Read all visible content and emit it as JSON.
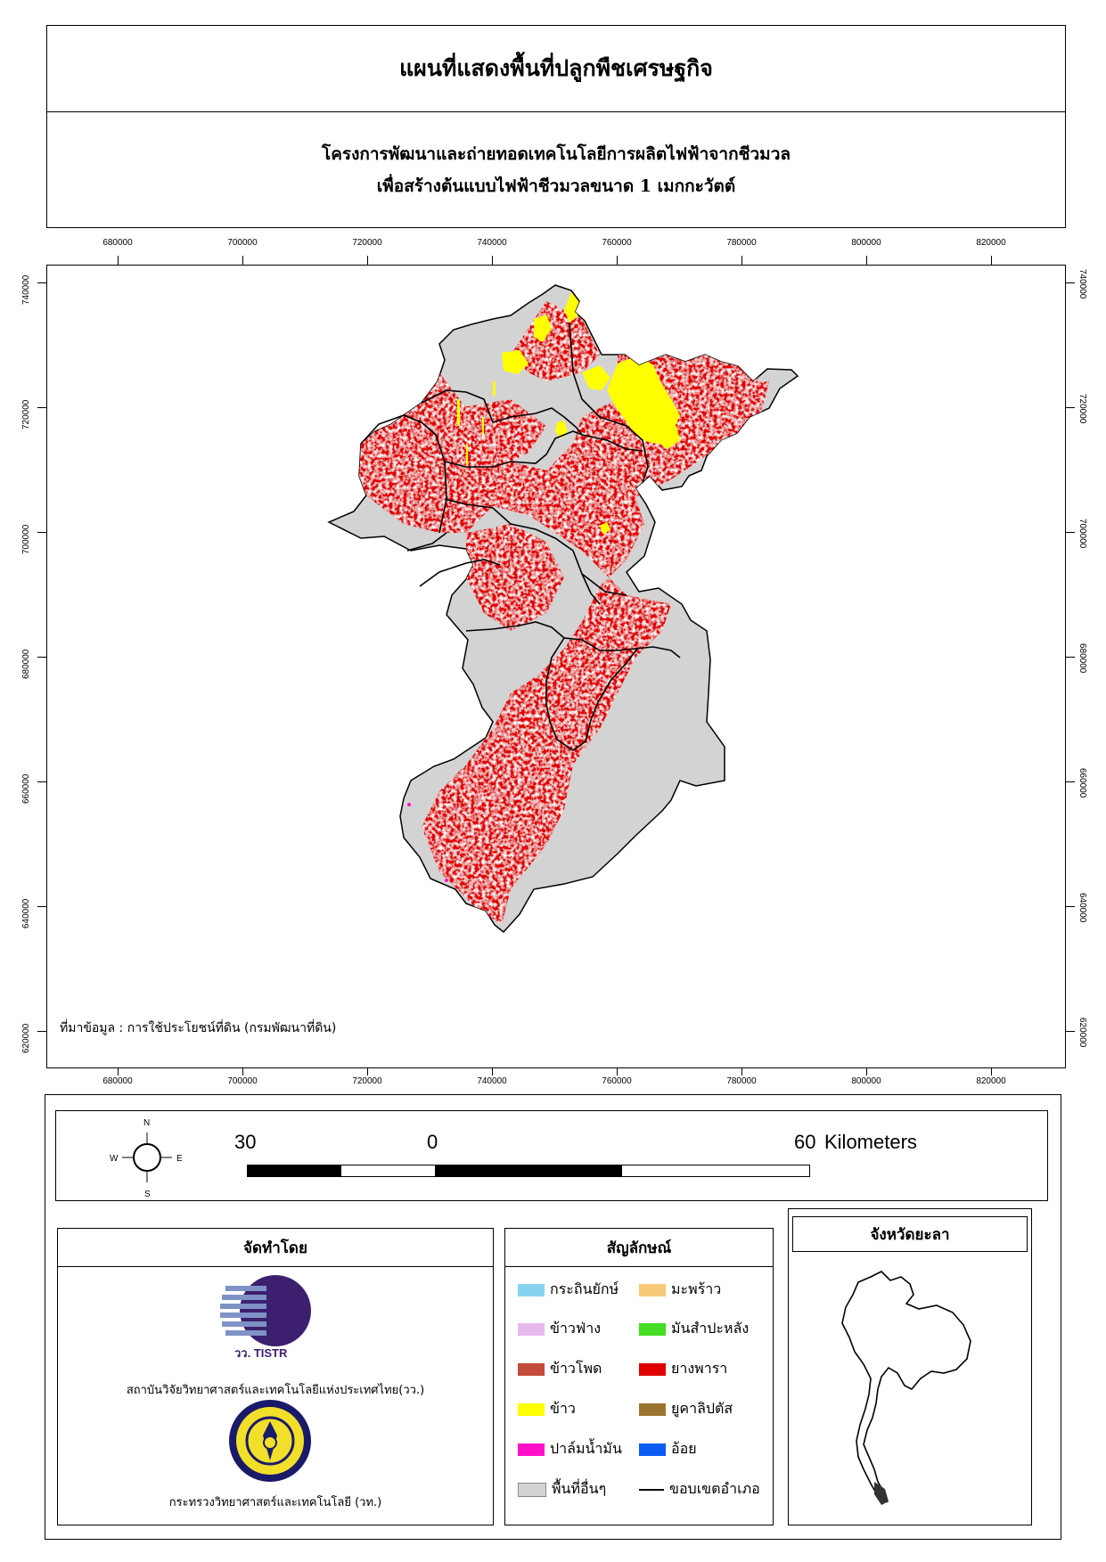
{
  "title": "แผนที่แสดงพื้นที่ปลูกพืชเศรษฐกิจ",
  "subtitle": [
    "โครงการพัฒนาและถ่ายทอดเทคโนโลยีการผลิตไฟฟ้าจากชีวมวล",
    "เพื่อสร้างต้นแบบไฟฟ้าชีวมวลขนาด 1 เมกกะวัตต์"
  ],
  "x_ticks": [
    "680000",
    "700000",
    "720000",
    "740000",
    "760000",
    "780000",
    "800000",
    "820000"
  ],
  "y_ticks": [
    "740000",
    "720000",
    "700000",
    "680000",
    "660000",
    "640000",
    "620000"
  ],
  "source": "ที่มาข้อมูล : การใช้ประโยชน์ที่ดิน (กรมพัฒนาที่ดิน)",
  "north_arrow": {
    "n": "N",
    "s": "S",
    "e": "E",
    "w": "W",
    "icon": "compass-icon"
  },
  "scale_bar": {
    "labels": [
      "30",
      "0",
      "60"
    ],
    "unit": "Kilometers"
  },
  "producer": {
    "heading": "จัดทำโดย",
    "logo1_text": "วว. TISTR",
    "org1": "สถาบันวิจัยวิทยาศาสตร์และเทคโนโลยีแห่งประเทศไทย(วว.)",
    "org2": "กระทรวงวิทยาศาสตร์และเทคโนโลยี (วท.)"
  },
  "legend": {
    "heading": "สัญลักษณ์",
    "items": [
      {
        "label": "กระถินยักษ์",
        "color": "#87d3ef"
      },
      {
        "label": "มะพร้าว",
        "color": "#f8c978"
      },
      {
        "label": "ข้าวฟ่าง",
        "color": "#e8b9ec"
      },
      {
        "label": "มันสำปะหลัง",
        "color": "#44dd22"
      },
      {
        "label": "ข้าวโพด",
        "color": "#c44a3a"
      },
      {
        "label": "ยางพารา",
        "color": "#e00000"
      },
      {
        "label": "ข้าว",
        "color": "#ffff00"
      },
      {
        "label": "ยูคาลิปตัส",
        "color": "#9b7430"
      },
      {
        "label": "ปาล์มน้ำมัน",
        "color": "#ff11cc"
      },
      {
        "label": "อ้อย",
        "color": "#0a5cf2"
      },
      {
        "label": "พื้นที่อื่นๆ",
        "color": "#d3d3d3"
      },
      {
        "label": "ขอบเขตอำเภอ",
        "color": "#000000"
      }
    ]
  },
  "inset": {
    "heading": "จังหวัดยะลา"
  },
  "colors": {
    "rubber": "#e00000",
    "rice": "#ffff00",
    "other": "#d3d3d3",
    "palm": "#ff11cc"
  }
}
